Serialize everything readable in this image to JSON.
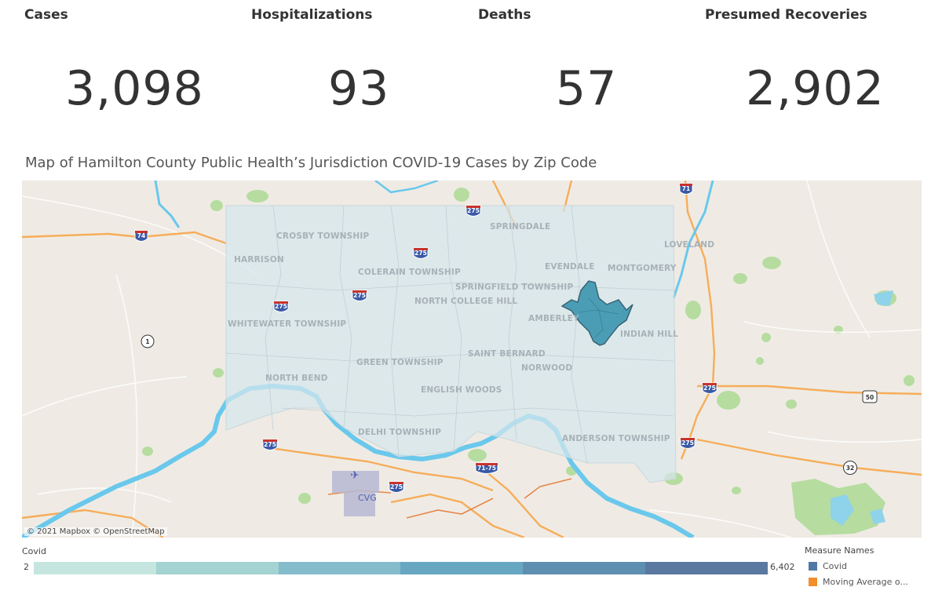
{
  "kpis": [
    {
      "label": "Cases",
      "value": "3,098"
    },
    {
      "label": "Hospitalizations",
      "value": "93"
    },
    {
      "label": "Deaths",
      "value": "57"
    },
    {
      "label": "Presumed Recoveries",
      "value": "2,902"
    }
  ],
  "map": {
    "title": "Map of Hamilton County Public Health’s Jurisdiction COVID-19 Cases by Zip Code",
    "attribution": "© 2021 Mapbox  © OpenStreetMap",
    "places": [
      "CROSBY TOWNSHIP",
      "HARRISON",
      "COLERAIN TOWNSHIP",
      "SPRINGDALE",
      "EVENDALE",
      "LOVELAND",
      "MONTGOMERY",
      "SPRINGFIELD TOWNSHIP",
      "NORTH COLLEGE HILL",
      "WHITEWATER TOWNSHIP",
      "AMBERLEY",
      "INDIAN HILL",
      "GREEN TOWNSHIP",
      "SAINT BERNARD",
      "NORWOOD",
      "NORTH BEND",
      "ENGLISH WOODS",
      "DELHI TOWNSHIP",
      "ANDERSON TOWNSHIP",
      "CVG"
    ],
    "shields": [
      "74",
      "275",
      "275",
      "275",
      "275",
      "71",
      "1",
      "275",
      "275",
      "275",
      "71-75",
      "275",
      "50",
      "32"
    ]
  },
  "legend": {
    "title": "Covid",
    "min": "2",
    "max": "6,402",
    "colors": [
      "#c5e6de",
      "#a3d3d3",
      "#85bccc",
      "#68a7c2",
      "#5e8fb0",
      "#5a78a0"
    ]
  },
  "measure_names": {
    "title": "Measure Names",
    "items": [
      {
        "label": "Covid",
        "color": "#4e79a7"
      },
      {
        "label": "Moving Average o...",
        "color": "#f28e2b"
      }
    ]
  }
}
